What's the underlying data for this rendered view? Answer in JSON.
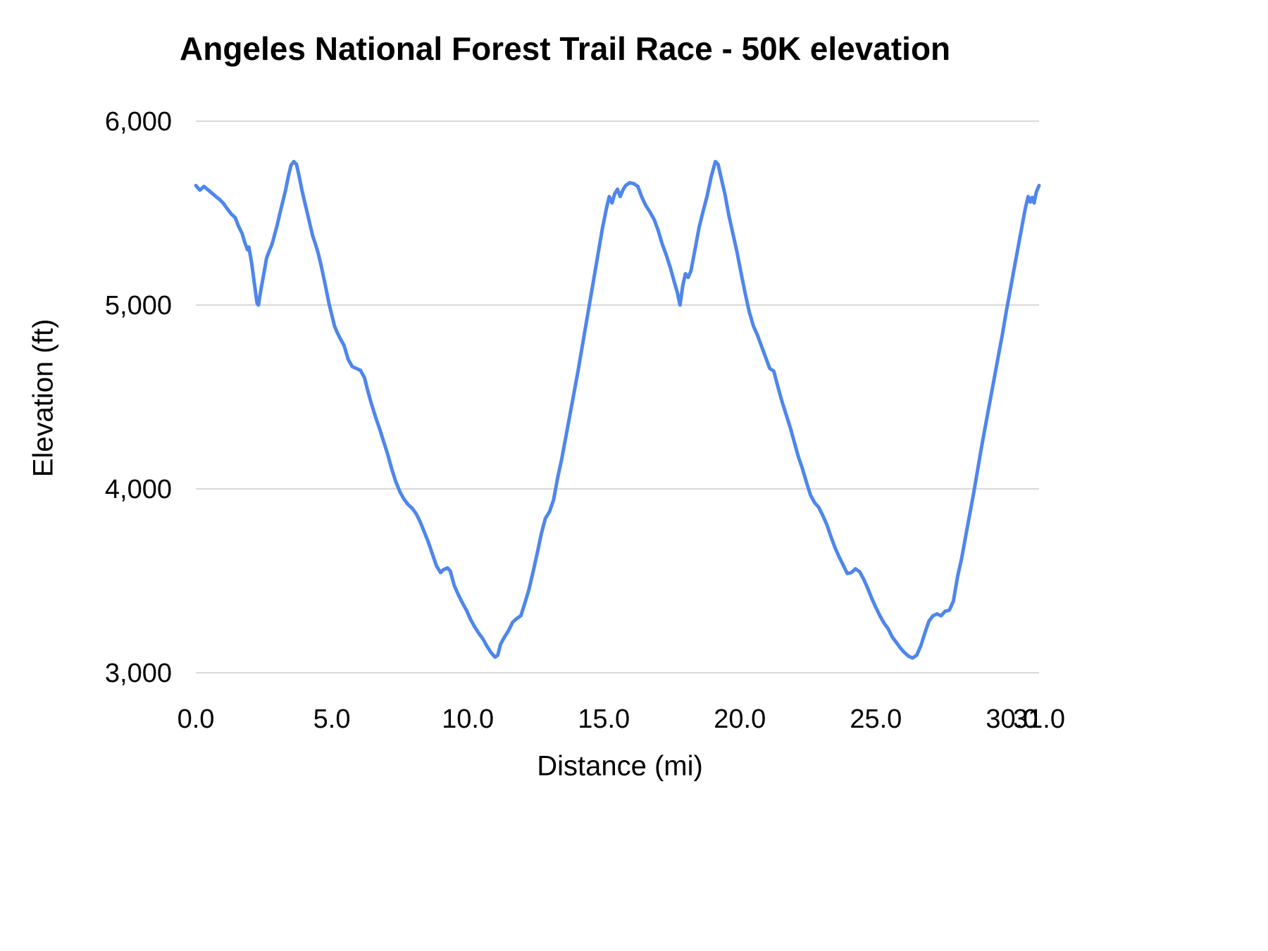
{
  "chart_data": {
    "type": "line",
    "title": "Angeles National Forest Trail Race - 50K elevation",
    "xlabel": "Distance (mi)",
    "ylabel": "Elevation (ft)",
    "xlim": [
      0,
      31
    ],
    "ylim": [
      3000,
      6000
    ],
    "x_ticks": [
      0,
      5,
      10,
      15,
      20,
      25,
      30,
      31
    ],
    "x_tick_labels": [
      "0.0",
      "5.0",
      "10.0",
      "15.0",
      "20.0",
      "25.0",
      "30.0",
      "31.0"
    ],
    "y_ticks": [
      3000,
      4000,
      5000,
      6000
    ],
    "y_tick_labels": [
      "3,000",
      "4,000",
      "5,000",
      "6,000"
    ],
    "grid": true,
    "legend": false,
    "line_color": "#4e86ec",
    "grid_color": "#d9d9d9",
    "series": [
      {
        "name": "elevation",
        "points": [
          [
            0,
            5650
          ],
          [
            0.15,
            5625
          ],
          [
            0.3,
            5645
          ],
          [
            0.5,
            5620
          ],
          [
            0.7,
            5595
          ],
          [
            0.9,
            5570
          ],
          [
            1.0,
            5555
          ],
          [
            1.15,
            5525
          ],
          [
            1.3,
            5495
          ],
          [
            1.45,
            5475
          ],
          [
            1.55,
            5435
          ],
          [
            1.7,
            5390
          ],
          [
            1.8,
            5340
          ],
          [
            1.9,
            5300
          ],
          [
            1.95,
            5315
          ],
          [
            2.05,
            5230
          ],
          [
            2.15,
            5120
          ],
          [
            2.25,
            5010
          ],
          [
            2.3,
            5000
          ],
          [
            2.4,
            5090
          ],
          [
            2.5,
            5170
          ],
          [
            2.6,
            5255
          ],
          [
            2.7,
            5295
          ],
          [
            2.8,
            5330
          ],
          [
            2.9,
            5385
          ],
          [
            3.0,
            5440
          ],
          [
            3.1,
            5505
          ],
          [
            3.2,
            5565
          ],
          [
            3.3,
            5625
          ],
          [
            3.4,
            5700
          ],
          [
            3.5,
            5760
          ],
          [
            3.6,
            5780
          ],
          [
            3.7,
            5765
          ],
          [
            3.8,
            5700
          ],
          [
            3.9,
            5625
          ],
          [
            4.0,
            5560
          ],
          [
            4.1,
            5500
          ],
          [
            4.2,
            5435
          ],
          [
            4.3,
            5375
          ],
          [
            4.4,
            5330
          ],
          [
            4.5,
            5280
          ],
          [
            4.6,
            5220
          ],
          [
            4.7,
            5150
          ],
          [
            4.8,
            5080
          ],
          [
            4.9,
            5005
          ],
          [
            5.0,
            4945
          ],
          [
            5.1,
            4885
          ],
          [
            5.2,
            4850
          ],
          [
            5.3,
            4820
          ],
          [
            5.45,
            4780
          ],
          [
            5.6,
            4705
          ],
          [
            5.75,
            4665
          ],
          [
            5.9,
            4655
          ],
          [
            6.05,
            4645
          ],
          [
            6.2,
            4605
          ],
          [
            6.3,
            4545
          ],
          [
            6.45,
            4465
          ],
          [
            6.6,
            4395
          ],
          [
            6.75,
            4330
          ],
          [
            6.9,
            4260
          ],
          [
            7.05,
            4190
          ],
          [
            7.2,
            4110
          ],
          [
            7.35,
            4040
          ],
          [
            7.5,
            3985
          ],
          [
            7.65,
            3945
          ],
          [
            7.8,
            3915
          ],
          [
            7.95,
            3895
          ],
          [
            8.1,
            3865
          ],
          [
            8.25,
            3820
          ],
          [
            8.4,
            3765
          ],
          [
            8.55,
            3710
          ],
          [
            8.7,
            3645
          ],
          [
            8.85,
            3580
          ],
          [
            9.0,
            3545
          ],
          [
            9.1,
            3560
          ],
          [
            9.25,
            3570
          ],
          [
            9.35,
            3555
          ],
          [
            9.5,
            3475
          ],
          [
            9.65,
            3425
          ],
          [
            9.8,
            3380
          ],
          [
            9.95,
            3340
          ],
          [
            10.1,
            3290
          ],
          [
            10.25,
            3250
          ],
          [
            10.4,
            3215
          ],
          [
            10.55,
            3185
          ],
          [
            10.7,
            3145
          ],
          [
            10.85,
            3110
          ],
          [
            11.0,
            3085
          ],
          [
            11.1,
            3095
          ],
          [
            11.2,
            3155
          ],
          [
            11.35,
            3195
          ],
          [
            11.5,
            3230
          ],
          [
            11.65,
            3275
          ],
          [
            11.8,
            3295
          ],
          [
            11.95,
            3310
          ],
          [
            12.1,
            3380
          ],
          [
            12.25,
            3455
          ],
          [
            12.4,
            3550
          ],
          [
            12.55,
            3650
          ],
          [
            12.7,
            3755
          ],
          [
            12.85,
            3840
          ],
          [
            13.0,
            3875
          ],
          [
            13.15,
            3940
          ],
          [
            13.3,
            4060
          ],
          [
            13.45,
            4160
          ],
          [
            13.6,
            4280
          ],
          [
            13.75,
            4400
          ],
          [
            13.9,
            4520
          ],
          [
            14.05,
            4640
          ],
          [
            14.2,
            4770
          ],
          [
            14.35,
            4900
          ],
          [
            14.5,
            5030
          ],
          [
            14.65,
            5160
          ],
          [
            14.8,
            5290
          ],
          [
            14.95,
            5420
          ],
          [
            15.1,
            5530
          ],
          [
            15.2,
            5590
          ],
          [
            15.3,
            5555
          ],
          [
            15.4,
            5605
          ],
          [
            15.5,
            5630
          ],
          [
            15.6,
            5590
          ],
          [
            15.7,
            5625
          ],
          [
            15.8,
            5650
          ],
          [
            15.95,
            5665
          ],
          [
            16.1,
            5660
          ],
          [
            16.25,
            5645
          ],
          [
            16.4,
            5585
          ],
          [
            16.55,
            5540
          ],
          [
            16.7,
            5505
          ],
          [
            16.85,
            5465
          ],
          [
            17.0,
            5405
          ],
          [
            17.15,
            5330
          ],
          [
            17.3,
            5270
          ],
          [
            17.45,
            5200
          ],
          [
            17.6,
            5120
          ],
          [
            17.7,
            5070
          ],
          [
            17.8,
            5000
          ],
          [
            17.9,
            5105
          ],
          [
            18.0,
            5170
          ],
          [
            18.1,
            5150
          ],
          [
            18.2,
            5185
          ],
          [
            18.35,
            5300
          ],
          [
            18.5,
            5420
          ],
          [
            18.65,
            5510
          ],
          [
            18.8,
            5595
          ],
          [
            18.95,
            5700
          ],
          [
            19.1,
            5780
          ],
          [
            19.2,
            5765
          ],
          [
            19.3,
            5700
          ],
          [
            19.45,
            5605
          ],
          [
            19.6,
            5485
          ],
          [
            19.75,
            5385
          ],
          [
            19.9,
            5285
          ],
          [
            20.05,
            5170
          ],
          [
            20.2,
            5060
          ],
          [
            20.35,
            4960
          ],
          [
            20.5,
            4885
          ],
          [
            20.65,
            4835
          ],
          [
            20.8,
            4775
          ],
          [
            20.95,
            4715
          ],
          [
            21.1,
            4655
          ],
          [
            21.25,
            4640
          ],
          [
            21.4,
            4555
          ],
          [
            21.55,
            4475
          ],
          [
            21.7,
            4405
          ],
          [
            21.85,
            4335
          ],
          [
            22.0,
            4255
          ],
          [
            22.15,
            4175
          ],
          [
            22.3,
            4110
          ],
          [
            22.45,
            4035
          ],
          [
            22.6,
            3965
          ],
          [
            22.75,
            3925
          ],
          [
            22.9,
            3900
          ],
          [
            23.05,
            3855
          ],
          [
            23.2,
            3805
          ],
          [
            23.35,
            3740
          ],
          [
            23.5,
            3680
          ],
          [
            23.65,
            3630
          ],
          [
            23.8,
            3585
          ],
          [
            23.95,
            3540
          ],
          [
            24.1,
            3545
          ],
          [
            24.25,
            3565
          ],
          [
            24.4,
            3550
          ],
          [
            24.55,
            3510
          ],
          [
            24.7,
            3460
          ],
          [
            24.85,
            3405
          ],
          [
            25.0,
            3355
          ],
          [
            25.15,
            3310
          ],
          [
            25.3,
            3270
          ],
          [
            25.45,
            3240
          ],
          [
            25.6,
            3195
          ],
          [
            25.75,
            3165
          ],
          [
            25.9,
            3135
          ],
          [
            26.05,
            3110
          ],
          [
            26.2,
            3090
          ],
          [
            26.35,
            3080
          ],
          [
            26.5,
            3095
          ],
          [
            26.65,
            3145
          ],
          [
            26.8,
            3215
          ],
          [
            26.95,
            3280
          ],
          [
            27.1,
            3310
          ],
          [
            27.25,
            3320
          ],
          [
            27.4,
            3310
          ],
          [
            27.55,
            3335
          ],
          [
            27.7,
            3340
          ],
          [
            27.85,
            3390
          ],
          [
            28.0,
            3520
          ],
          [
            28.15,
            3620
          ],
          [
            28.3,
            3740
          ],
          [
            28.45,
            3860
          ],
          [
            28.6,
            3980
          ],
          [
            28.75,
            4110
          ],
          [
            28.9,
            4240
          ],
          [
            29.05,
            4360
          ],
          [
            29.2,
            4480
          ],
          [
            29.35,
            4600
          ],
          [
            29.5,
            4720
          ],
          [
            29.65,
            4840
          ],
          [
            29.8,
            4970
          ],
          [
            29.95,
            5090
          ],
          [
            30.1,
            5210
          ],
          [
            30.25,
            5330
          ],
          [
            30.4,
            5450
          ],
          [
            30.5,
            5530
          ],
          [
            30.6,
            5590
          ],
          [
            30.68,
            5560
          ],
          [
            30.75,
            5585
          ],
          [
            30.82,
            5555
          ],
          [
            30.9,
            5615
          ],
          [
            31.0,
            5650
          ]
        ]
      }
    ]
  }
}
